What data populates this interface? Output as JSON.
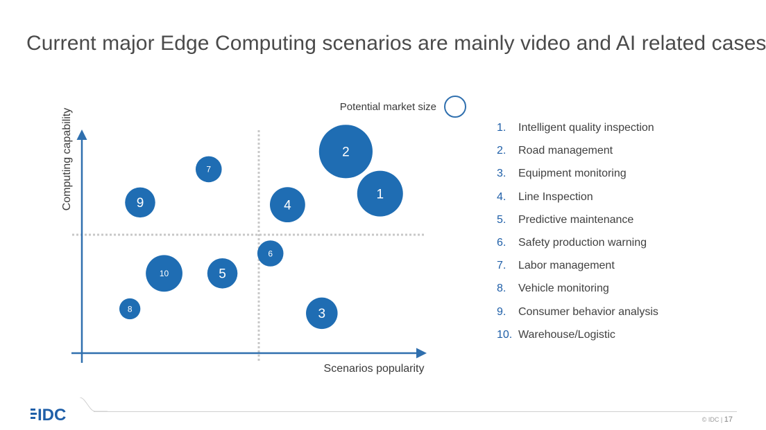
{
  "title": "Current major Edge Computing scenarios are mainly video and AI related cases",
  "chart_data": {
    "type": "bubble",
    "xlabel": "Scenarios popularity",
    "ylabel": "Computing capability",
    "size_legend_label": "Potential market size",
    "point_color": "#1f6db3",
    "points": [
      {
        "id": "1",
        "name": "Intelligent quality inspection",
        "x": 0.87,
        "y": 0.72,
        "size": 1.0
      },
      {
        "id": "2",
        "name": "Road management",
        "x": 0.77,
        "y": 0.91,
        "size": 1.17
      },
      {
        "id": "3",
        "name": "Equipment monitoring",
        "x": 0.7,
        "y": 0.18,
        "size": 0.69
      },
      {
        "id": "4",
        "name": "Line Inspection",
        "x": 0.6,
        "y": 0.67,
        "size": 0.77
      },
      {
        "id": "5",
        "name": "Predictive maintenance",
        "x": 0.41,
        "y": 0.36,
        "size": 0.66
      },
      {
        "id": "6",
        "name": "Safety production warning",
        "x": 0.55,
        "y": 0.45,
        "size": 0.57
      },
      {
        "id": "7",
        "name": "Labor management",
        "x": 0.37,
        "y": 0.83,
        "size": 0.57
      },
      {
        "id": "8",
        "name": "Vehicle monitoring",
        "x": 0.14,
        "y": 0.2,
        "size": 0.46
      },
      {
        "id": "9",
        "name": "Consumer behavior analysis",
        "x": 0.17,
        "y": 0.68,
        "size": 0.66
      },
      {
        "id": "10",
        "name": "Warehouse/Logistic",
        "x": 0.24,
        "y": 0.36,
        "size": 0.8
      }
    ]
  },
  "legend_items": [
    {
      "num": "1.",
      "label": "Intelligent quality inspection"
    },
    {
      "num": "2.",
      "label": "Road management"
    },
    {
      "num": "3.",
      "label": "Equipment monitoring"
    },
    {
      "num": "4.",
      "label": "Line Inspection"
    },
    {
      "num": "5.",
      "label": "Predictive maintenance"
    },
    {
      "num": "6.",
      "label": "Safety production warning"
    },
    {
      "num": "7.",
      "label": "Labor management"
    },
    {
      "num": "8.",
      "label": "Vehicle monitoring"
    },
    {
      "num": "9.",
      "label": "Consumer behavior analysis"
    },
    {
      "num": "10.",
      "label": "Warehouse/Logistic"
    }
  ],
  "footer": {
    "logo_text": "IDC",
    "copyright": "© IDC |",
    "page_number": "17"
  }
}
